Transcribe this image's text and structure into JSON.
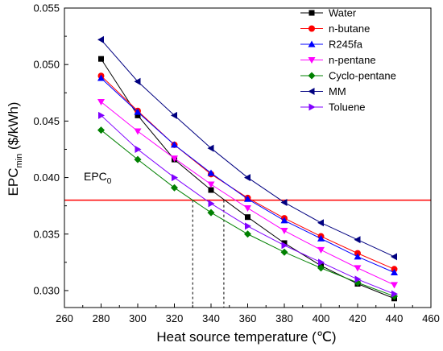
{
  "chart_data": {
    "type": "line",
    "xlabel": "Heat source temperature (℃)",
    "ylabel": {
      "main": "EPC",
      "sub": "min",
      "unit": " ($/kWh)"
    },
    "xlim": [
      260,
      460
    ],
    "ylim": [
      0.0285,
      0.055
    ],
    "x_ticks": [
      260,
      280,
      300,
      320,
      340,
      360,
      380,
      400,
      420,
      440,
      460
    ],
    "y_ticks": [
      "0.030",
      "0.035",
      "0.040",
      "0.045",
      "0.050",
      "0.055"
    ],
    "y_tick_values": [
      0.03,
      0.035,
      0.04,
      0.045,
      0.05,
      0.055
    ],
    "x": [
      280,
      300,
      320,
      340,
      360,
      380,
      400,
      420,
      440
    ],
    "legend_position": "top-right",
    "series": [
      {
        "name": "Water",
        "color": "#000000",
        "marker": "square",
        "values": [
          0.0505,
          0.0455,
          0.0416,
          0.0389,
          0.0365,
          0.0342,
          0.0322,
          0.0306,
          0.0293
        ]
      },
      {
        "name": "n-butane",
        "color": "#ff0000",
        "marker": "circle",
        "values": [
          0.049,
          0.0459,
          0.0429,
          0.0403,
          0.0382,
          0.0364,
          0.0348,
          0.0333,
          0.0319
        ]
      },
      {
        "name": "R245fa",
        "color": "#0000ff",
        "marker": "triangle-up",
        "values": [
          0.0488,
          0.0458,
          0.0429,
          0.0404,
          0.0381,
          0.0362,
          0.0346,
          0.033,
          0.0316
        ]
      },
      {
        "name": "n-pentane",
        "color": "#ff00ff",
        "marker": "triangle-down",
        "values": [
          0.0467,
          0.0441,
          0.0417,
          0.0394,
          0.0373,
          0.0353,
          0.0336,
          0.032,
          0.0305
        ]
      },
      {
        "name": "Cyclo-pentane",
        "color": "#008000",
        "marker": "diamond",
        "values": [
          0.0442,
          0.0416,
          0.0391,
          0.0369,
          0.035,
          0.0334,
          0.032,
          0.0307,
          0.0295
        ]
      },
      {
        "name": "MM",
        "color": "#000080",
        "marker": "triangle-left",
        "values": [
          0.0522,
          0.0485,
          0.0455,
          0.0426,
          0.04,
          0.0378,
          0.036,
          0.0345,
          0.033
        ]
      },
      {
        "name": "Toluene",
        "color": "#8000ff",
        "marker": "triangle-right",
        "values": [
          0.0455,
          0.0425,
          0.04,
          0.0377,
          0.0357,
          0.034,
          0.0325,
          0.031,
          0.0297
        ]
      }
    ],
    "reference_line": {
      "label_main": "EPC",
      "label_sub": "0",
      "value": 0.038,
      "color": "#ff0000"
    },
    "dashed_markers": [
      330,
      347
    ]
  }
}
